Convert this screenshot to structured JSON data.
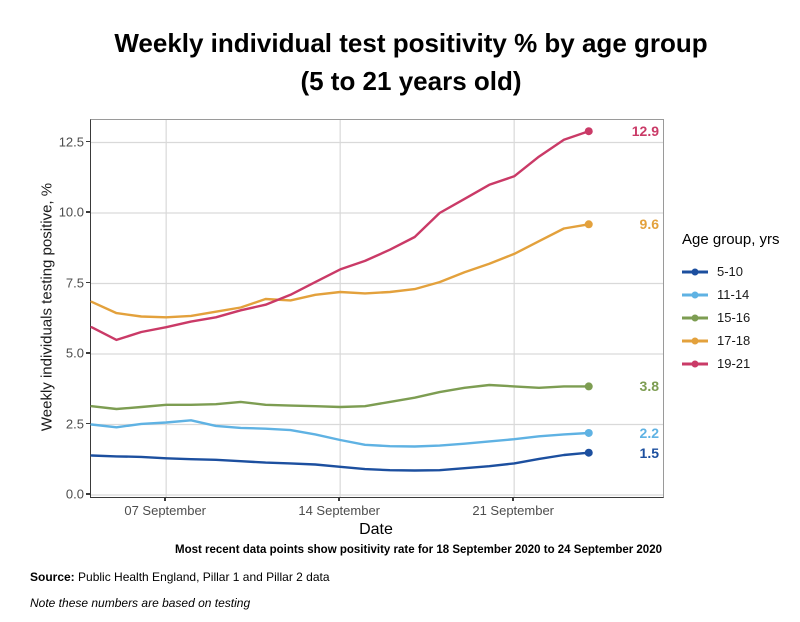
{
  "title": {
    "line1": "Weekly individual test positivity % by age group",
    "line2": "(5 to 21 years old)"
  },
  "legend": {
    "title": "Age group, yrs"
  },
  "caption": "Most recent data points show positivity rate for 18 September 2020 to 24 September 2020",
  "source_label": "Source:",
  "source_text": " Public Health England, Pillar 1 and Pillar 2 data",
  "note": "Note these numbers are based on testing",
  "colors": {
    "gridline": "#d9d9d9",
    "axis_text": "#4d4d4d",
    "axis_line": "#3a3a3a"
  },
  "chart_data": {
    "type": "line",
    "title": "Weekly individual test positivity % by age group (5 to 21 years old)",
    "xlabel": "Date",
    "ylabel": "Weekly individuals testing positive, %",
    "ylim": [
      0,
      13.4
    ],
    "grid": "major only",
    "legend_position": "right",
    "y_ticks": [
      {
        "value": 0.0,
        "label": "0.0"
      },
      {
        "value": 2.5,
        "label": "2.5"
      },
      {
        "value": 5.0,
        "label": "5.0"
      },
      {
        "value": 7.5,
        "label": "7.5"
      },
      {
        "value": 10.0,
        "label": "10.0"
      },
      {
        "value": 12.5,
        "label": "12.5"
      }
    ],
    "x_ticks": [
      {
        "day_index": 3,
        "label": "07 September"
      },
      {
        "day_index": 10,
        "label": "14 September"
      },
      {
        "day_index": 17,
        "label": "21 September"
      }
    ],
    "x_range_note": "daily points from 04 September 2020 to 24 September 2020",
    "series": [
      {
        "name": "5-10",
        "color": "#1c4f9f",
        "end_label": "1.5",
        "values": [
          1.4,
          1.37,
          1.35,
          1.3,
          1.27,
          1.25,
          1.2,
          1.15,
          1.12,
          1.08,
          1.0,
          0.92,
          0.88,
          0.87,
          0.88,
          0.95,
          1.02,
          1.12,
          1.28,
          1.42,
          1.5
        ]
      },
      {
        "name": "11-14",
        "color": "#5fb2e3",
        "end_label": "2.2",
        "values": [
          2.5,
          2.4,
          2.52,
          2.57,
          2.65,
          2.45,
          2.38,
          2.35,
          2.3,
          2.15,
          1.95,
          1.78,
          1.73,
          1.72,
          1.75,
          1.82,
          1.9,
          1.98,
          2.08,
          2.15,
          2.2
        ]
      },
      {
        "name": "15-16",
        "color": "#7d9d52",
        "end_label": "3.8",
        "values": [
          3.15,
          3.05,
          3.12,
          3.2,
          3.2,
          3.22,
          3.3,
          3.2,
          3.17,
          3.15,
          3.12,
          3.15,
          3.3,
          3.45,
          3.65,
          3.8,
          3.9,
          3.85,
          3.8,
          3.85,
          3.85
        ]
      },
      {
        "name": "17-18",
        "color": "#e3a13c",
        "end_label": "9.6",
        "values": [
          6.85,
          6.45,
          6.33,
          6.3,
          6.35,
          6.5,
          6.65,
          6.95,
          6.9,
          7.1,
          7.2,
          7.15,
          7.2,
          7.3,
          7.55,
          7.9,
          8.2,
          8.55,
          9.0,
          9.45,
          9.6
        ]
      },
      {
        "name": "19-21",
        "color": "#ca3a67",
        "end_label": "12.9",
        "values": [
          5.95,
          5.5,
          5.78,
          5.95,
          6.15,
          6.3,
          6.55,
          6.75,
          7.1,
          7.55,
          8.0,
          8.3,
          8.7,
          9.15,
          10.0,
          10.5,
          11.0,
          11.3,
          12.0,
          12.6,
          12.9
        ]
      }
    ]
  }
}
